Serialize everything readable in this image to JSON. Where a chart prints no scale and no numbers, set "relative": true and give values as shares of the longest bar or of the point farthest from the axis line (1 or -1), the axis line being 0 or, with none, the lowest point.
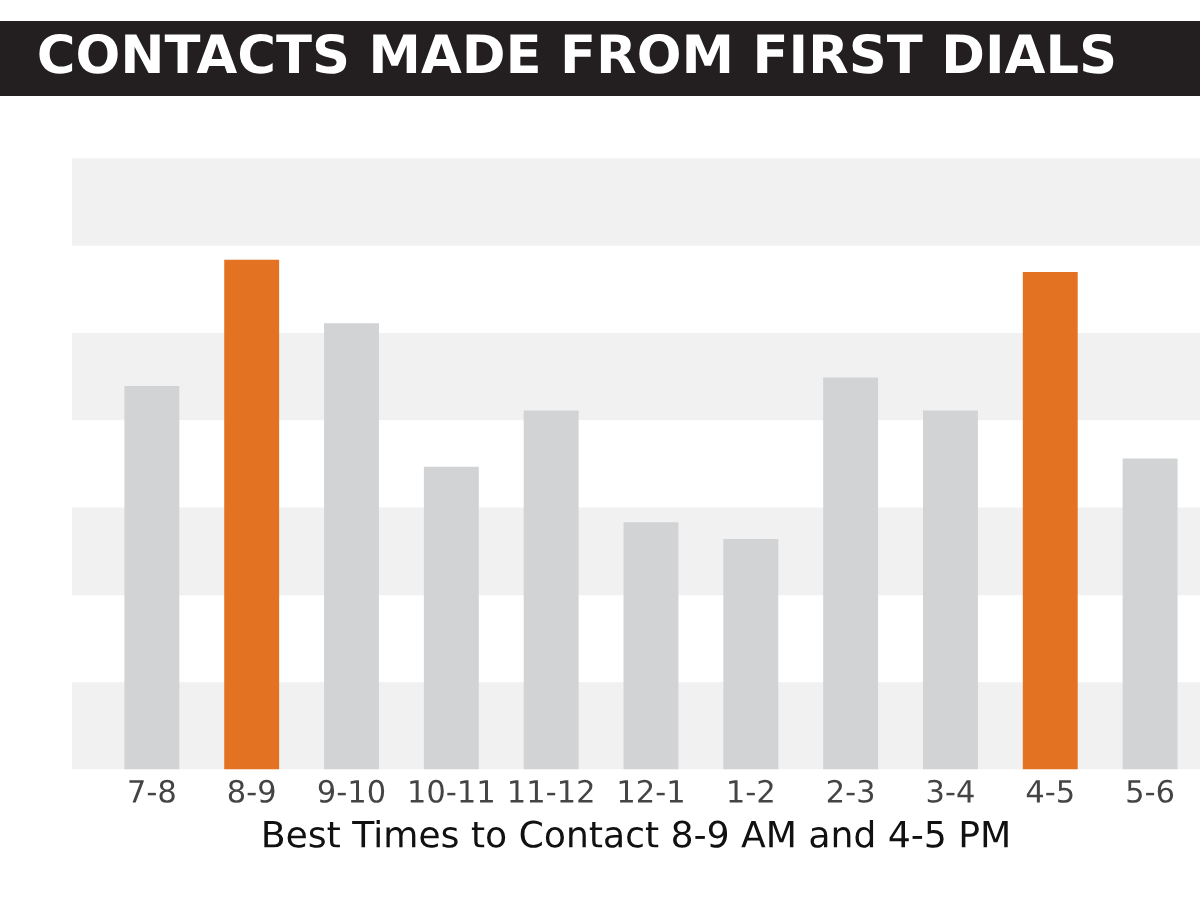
{
  "chart_data": {
    "type": "bar",
    "title": "CONTACTS MADE FROM FIRST DIALS",
    "xlabel": "Best Times to Contact 8-9 AM and 4-5 PM",
    "categories": [
      "7-8",
      "8-9",
      "9-10",
      "10-11",
      "11-12",
      "12-1",
      "1-2",
      "2-3",
      "3-4",
      "4-5",
      "5-6"
    ],
    "values": [
      0.752,
      1,
      0.875,
      0.594,
      0.704,
      0.485,
      0.452,
      0.769,
      0.704,
      0.976,
      0.61
    ],
    "colors": [
      "#d1d3d4",
      "#e37222",
      "#d1d3d4",
      "#d1d3d4",
      "#d1d3d4",
      "#d1d3d4",
      "#d1d3d4",
      "#d1d3d4",
      "#d1d3d4",
      "#e37222",
      "#d1d3d4"
    ],
    "relative": true,
    "bands": [
      {
        "axis": "y",
        "from": 0,
        "to": 0.171,
        "color": "#f1f1f1"
      },
      {
        "axis": "y",
        "from": 0.342,
        "to": 0.514,
        "color": "#f1f1f1"
      },
      {
        "axis": "y",
        "from": 0.685,
        "to": 0.856,
        "color": "#f1f1f1"
      },
      {
        "axis": "y",
        "from": 1.027,
        "to": 1.199,
        "color": "#f1f1f1"
      }
    ]
  }
}
